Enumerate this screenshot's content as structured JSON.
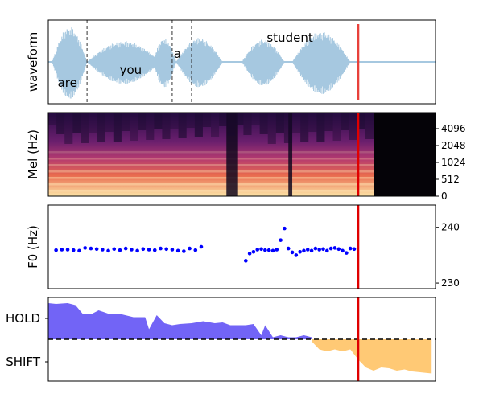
{
  "chart_data": [
    {
      "type": "line",
      "panel": "waveform",
      "ylabel": "waveform",
      "words": [
        {
          "text": "are",
          "t": 0.02
        },
        {
          "text": "you",
          "t": 0.18
        },
        {
          "text": "a",
          "t": 0.32
        },
        {
          "text": "student",
          "t": 0.56
        }
      ],
      "word_boundaries": [
        0.1,
        0.32,
        0.37
      ],
      "waveform_color": "#a6c8e0",
      "current_time": 0.8,
      "cursor_color": "#e8413a"
    },
    {
      "type": "heatmap",
      "panel": "mel",
      "ylabel": "Mel (Hz)",
      "yticks": [
        "0",
        "512",
        "1024",
        "2048",
        "4096"
      ],
      "speech_end": 0.84,
      "current_time": 0.8
    },
    {
      "type": "scatter",
      "panel": "f0",
      "ylabel": "F0 (Hz)",
      "yticks": [
        230,
        240
      ],
      "ylim": [
        229,
        244
      ],
      "point_color": "#0000ff",
      "series": [
        {
          "x": [
            0.02,
            0.035,
            0.05,
            0.065,
            0.08,
            0.095,
            0.11,
            0.125,
            0.14,
            0.155,
            0.17,
            0.185,
            0.2,
            0.215,
            0.23,
            0.245,
            0.26,
            0.275,
            0.29,
            0.305,
            0.32,
            0.335,
            0.35,
            0.365,
            0.38,
            0.395,
            0.51,
            0.52,
            0.53,
            0.54,
            0.55,
            0.56,
            0.57,
            0.58,
            0.59,
            0.6,
            0.61,
            0.62,
            0.63,
            0.64,
            0.65,
            0.66,
            0.67,
            0.68,
            0.69,
            0.7,
            0.71,
            0.72,
            0.73,
            0.74,
            0.75,
            0.76,
            0.77,
            0.78,
            0.79
          ],
          "y": [
            235.9,
            236.0,
            236.0,
            235.9,
            235.8,
            236.3,
            236.2,
            236.1,
            236.0,
            235.8,
            236.1,
            235.9,
            236.2,
            236.0,
            235.8,
            236.1,
            236.0,
            235.9,
            236.2,
            236.1,
            236.0,
            235.8,
            235.7,
            236.2,
            235.9,
            236.5,
            234.0,
            235.3,
            235.6,
            236.0,
            236.1,
            235.9,
            235.9,
            235.8,
            236.0,
            237.7,
            239.8,
            236.2,
            235.5,
            235.0,
            235.6,
            235.8,
            236.0,
            235.8,
            236.2,
            236.0,
            236.1,
            235.8,
            236.2,
            236.3,
            236.1,
            235.8,
            235.4,
            236.2,
            236.1
          ]
        }
      ],
      "current_time": 0.8
    },
    {
      "type": "area",
      "panel": "turn",
      "yticklabels": [
        "HOLD",
        "SHIFT"
      ],
      "ylim": [
        -1,
        1
      ],
      "threshold": 0,
      "hold_color": "#6a5cf5",
      "shift_color": "#ffc66e",
      "series": [
        {
          "name": "HOLD",
          "x": [
            0.0,
            0.02,
            0.05,
            0.07,
            0.09,
            0.11,
            0.13,
            0.16,
            0.19,
            0.22,
            0.25,
            0.26,
            0.28,
            0.3,
            0.32,
            0.34,
            0.37,
            0.4,
            0.43,
            0.45,
            0.47,
            0.49,
            0.51,
            0.53,
            0.55,
            0.56,
            0.58,
            0.6,
            0.62,
            0.64,
            0.66,
            0.68
          ],
          "y": [
            0.9,
            0.88,
            0.9,
            0.85,
            0.62,
            0.62,
            0.72,
            0.62,
            0.62,
            0.55,
            0.55,
            0.25,
            0.6,
            0.4,
            0.35,
            0.38,
            0.4,
            0.45,
            0.4,
            0.42,
            0.35,
            0.35,
            0.35,
            0.38,
            0.1,
            0.35,
            0.05,
            0.1,
            0.05,
            0.05,
            0.1,
            0.05
          ]
        },
        {
          "name": "SHIFT",
          "x": [
            0.68,
            0.7,
            0.72,
            0.74,
            0.76,
            0.78,
            0.8,
            0.82,
            0.84,
            0.86,
            0.88,
            0.9,
            0.92,
            0.94,
            0.96,
            0.99
          ],
          "y": [
            -0.05,
            -0.25,
            -0.3,
            -0.25,
            -0.3,
            -0.25,
            -0.5,
            -0.7,
            -0.78,
            -0.7,
            -0.72,
            -0.78,
            -0.75,
            -0.8,
            -0.82,
            -0.85
          ]
        }
      ],
      "current_time": 0.8
    }
  ]
}
